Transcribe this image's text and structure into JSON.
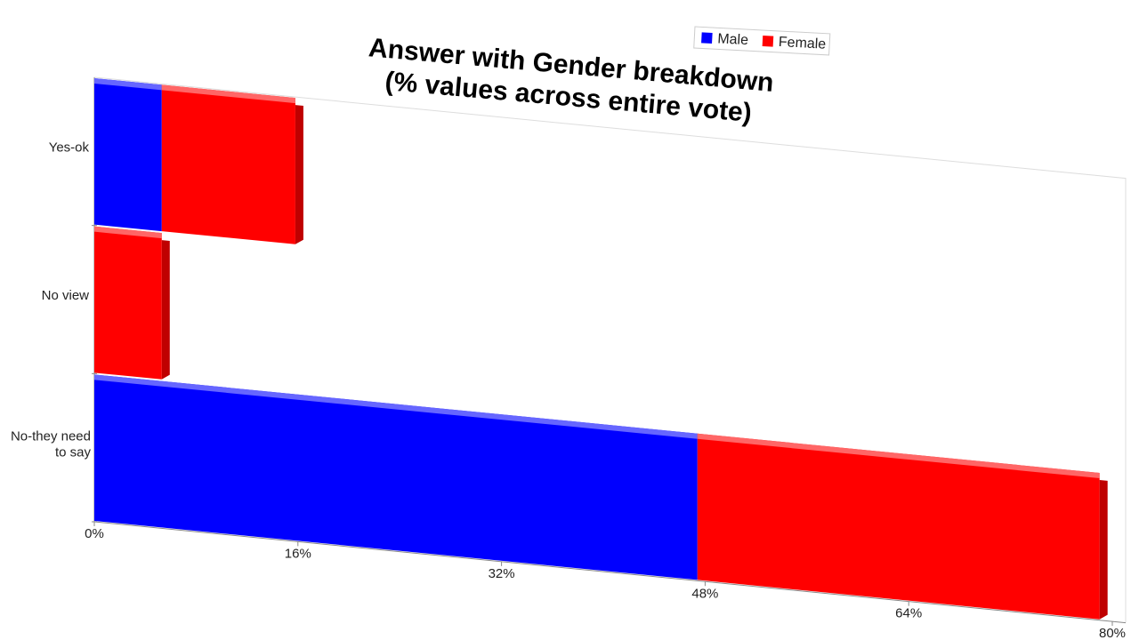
{
  "chart_data": {
    "type": "stacked_bar_horizontal",
    "title": "Answer with Gender breakdown",
    "subtitle": "(% values across entire vote)",
    "categories": [
      "Yes-ok",
      "No view",
      "No-they need to say"
    ],
    "series": [
      {
        "name": "Male",
        "color": "#0000ff",
        "values": [
          5.3,
          0,
          47.4
        ]
      },
      {
        "name": "Female",
        "color": "#ff0000",
        "values": [
          10.5,
          5.3,
          31.6
        ]
      }
    ],
    "xlim": [
      0,
      80
    ],
    "xticks": [
      {
        "value": 0,
        "label": "0%"
      },
      {
        "value": 16,
        "label": "16%"
      },
      {
        "value": 32,
        "label": "32%"
      },
      {
        "value": 48,
        "label": "48%"
      },
      {
        "value": 64,
        "label": "64%"
      },
      {
        "value": 80,
        "label": "80%"
      }
    ],
    "legend": "top"
  }
}
